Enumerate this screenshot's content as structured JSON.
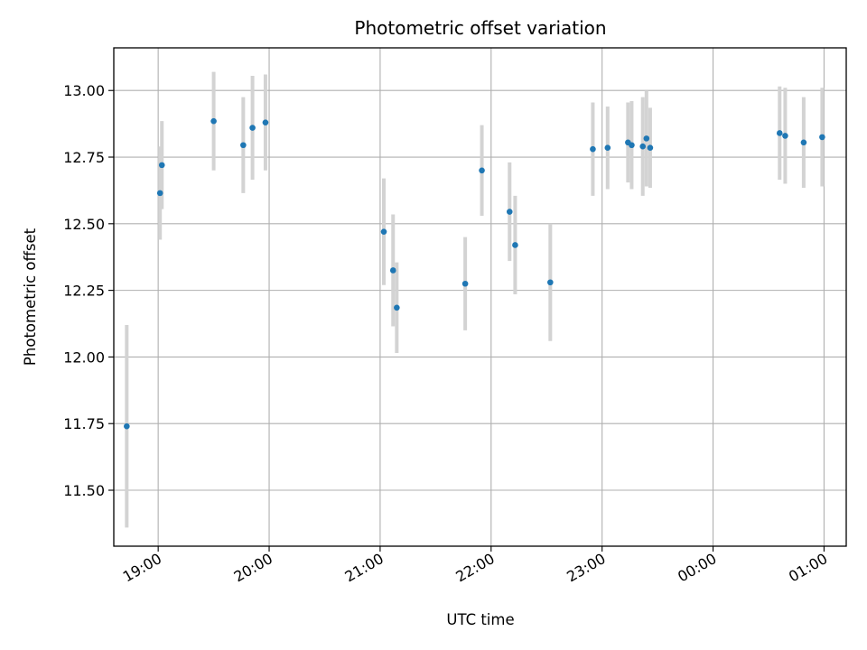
{
  "chart_data": {
    "type": "scatter",
    "title": "Photometric offset variation",
    "xlabel": "UTC time",
    "ylabel": "Photometric offset",
    "xlim": [
      "18:36",
      "01:12"
    ],
    "ylim": [
      11.29,
      13.16
    ],
    "x_ticks": [
      "19:00",
      "20:00",
      "21:00",
      "22:00",
      "23:00",
      "00:00",
      "01:00"
    ],
    "y_ticks": [
      "11.50",
      "11.75",
      "12.00",
      "12.25",
      "12.50",
      "12.75",
      "13.00"
    ],
    "grid": true,
    "marker_color": "#1f77b4",
    "errorbar_color": "#d3d3d3",
    "points": [
      {
        "time": "18:43",
        "value": 11.74,
        "err": 0.38
      },
      {
        "time": "19:01",
        "value": 12.615,
        "err": 0.175
      },
      {
        "time": "19:02",
        "value": 12.72,
        "err": 0.165
      },
      {
        "time": "19:30",
        "value": 12.885,
        "err": 0.185
      },
      {
        "time": "19:46",
        "value": 12.795,
        "err": 0.18
      },
      {
        "time": "19:51",
        "value": 12.86,
        "err": 0.195
      },
      {
        "time": "19:58",
        "value": 12.88,
        "err": 0.18
      },
      {
        "time": "21:02",
        "value": 12.47,
        "err": 0.2
      },
      {
        "time": "21:07",
        "value": 12.325,
        "err": 0.21
      },
      {
        "time": "21:09",
        "value": 12.185,
        "err": 0.17
      },
      {
        "time": "21:46",
        "value": 12.275,
        "err": 0.175
      },
      {
        "time": "21:55",
        "value": 12.7,
        "err": 0.17
      },
      {
        "time": "22:10",
        "value": 12.545,
        "err": 0.185
      },
      {
        "time": "22:13",
        "value": 12.42,
        "err": 0.185
      },
      {
        "time": "22:32",
        "value": 12.28,
        "err": 0.22
      },
      {
        "time": "22:55",
        "value": 12.78,
        "err": 0.175
      },
      {
        "time": "23:03",
        "value": 12.785,
        "err": 0.155
      },
      {
        "time": "23:14",
        "value": 12.805,
        "err": 0.15
      },
      {
        "time": "23:16",
        "value": 12.795,
        "err": 0.165
      },
      {
        "time": "23:22",
        "value": 12.79,
        "err": 0.185
      },
      {
        "time": "23:24",
        "value": 12.82,
        "err": 0.18
      },
      {
        "time": "23:26",
        "value": 12.785,
        "err": 0.15
      },
      {
        "time": "00:36",
        "value": 12.84,
        "err": 0.175
      },
      {
        "time": "00:39",
        "value": 12.83,
        "err": 0.18
      },
      {
        "time": "00:49",
        "value": 12.805,
        "err": 0.17
      },
      {
        "time": "00:59",
        "value": 12.825,
        "err": 0.185
      }
    ]
  }
}
